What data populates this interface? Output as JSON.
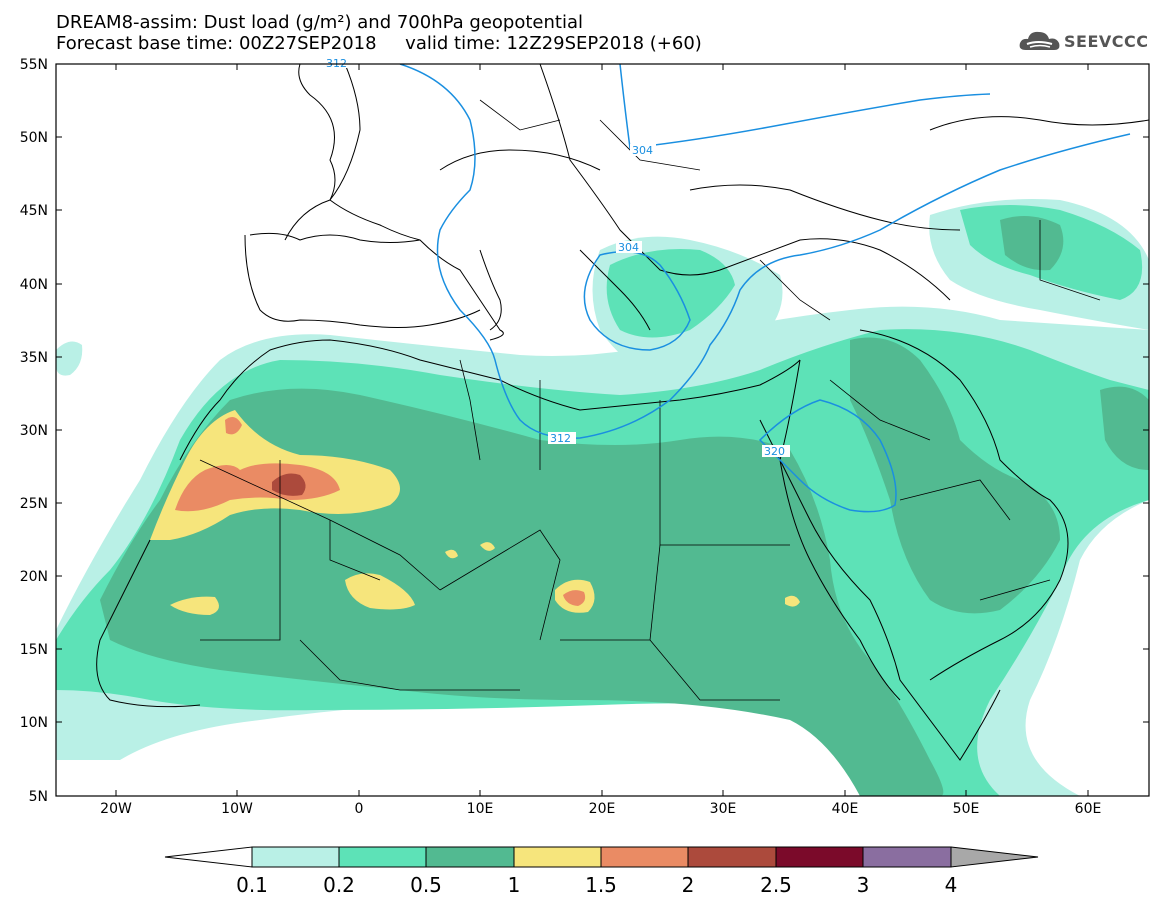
{
  "header": {
    "title_line1": "DREAM8-assim: Dust load (g/m²) and 700hPa geopotential",
    "title_line2": "Forecast base time: 00Z27SEP2018     valid time: 12Z29SEP2018 (+60)"
  },
  "logo": {
    "text": "SEEVCCC",
    "icon": "cloud-icon"
  },
  "map": {
    "lat_labels": [
      "55N",
      "50N",
      "45N",
      "40N",
      "35N",
      "30N",
      "25N",
      "20N",
      "15N",
      "10N",
      "5N"
    ],
    "lon_labels": [
      "20W",
      "10W",
      "0",
      "10E",
      "20E",
      "30E",
      "40E",
      "50E",
      "60E"
    ],
    "contour_labels": [
      "304",
      "304",
      "312",
      "320",
      "312"
    ]
  },
  "colorbar": {
    "levels": [
      "0.1",
      "0.2",
      "0.5",
      "1",
      "1.5",
      "2",
      "2.5",
      "3",
      "4"
    ],
    "colors": [
      "#ffffff",
      "#b9f0e6",
      "#5de2b7",
      "#52ba91",
      "#f6e57c",
      "#ea8b64",
      "#ac4a3c",
      "#7b0a2a",
      "#8a6ea0",
      "#a8a8a8"
    ]
  },
  "colors": {
    "dust_lt": "#b9f0e6",
    "dust_md": "#5de2b7",
    "dust_dk": "#52ba91",
    "dust_yl": "#f6e57c",
    "dust_or": "#ea8b64",
    "dust_rd": "#ac4a3c",
    "contour": "#1a8fe0"
  }
}
